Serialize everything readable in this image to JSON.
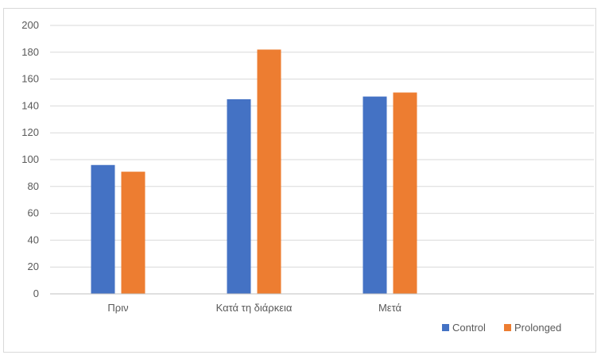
{
  "chart_data": {
    "type": "bar",
    "categories": [
      "Πριν",
      "Κατά τη διάρκεια",
      "Μετά"
    ],
    "series": [
      {
        "name": "Control",
        "values": [
          96,
          145,
          147
        ],
        "color": "#4472C4"
      },
      {
        "name": "Prolonged",
        "values": [
          91,
          182,
          150
        ],
        "color": "#ED7D31"
      }
    ],
    "ylim": [
      0,
      200
    ],
    "yticks": [
      0,
      20,
      40,
      60,
      80,
      100,
      120,
      140,
      160,
      180,
      200
    ],
    "grid": true,
    "legend_position": "bottom-right",
    "gridline_color": "#d9d9d9",
    "axis_color": "#bfbfbf"
  }
}
